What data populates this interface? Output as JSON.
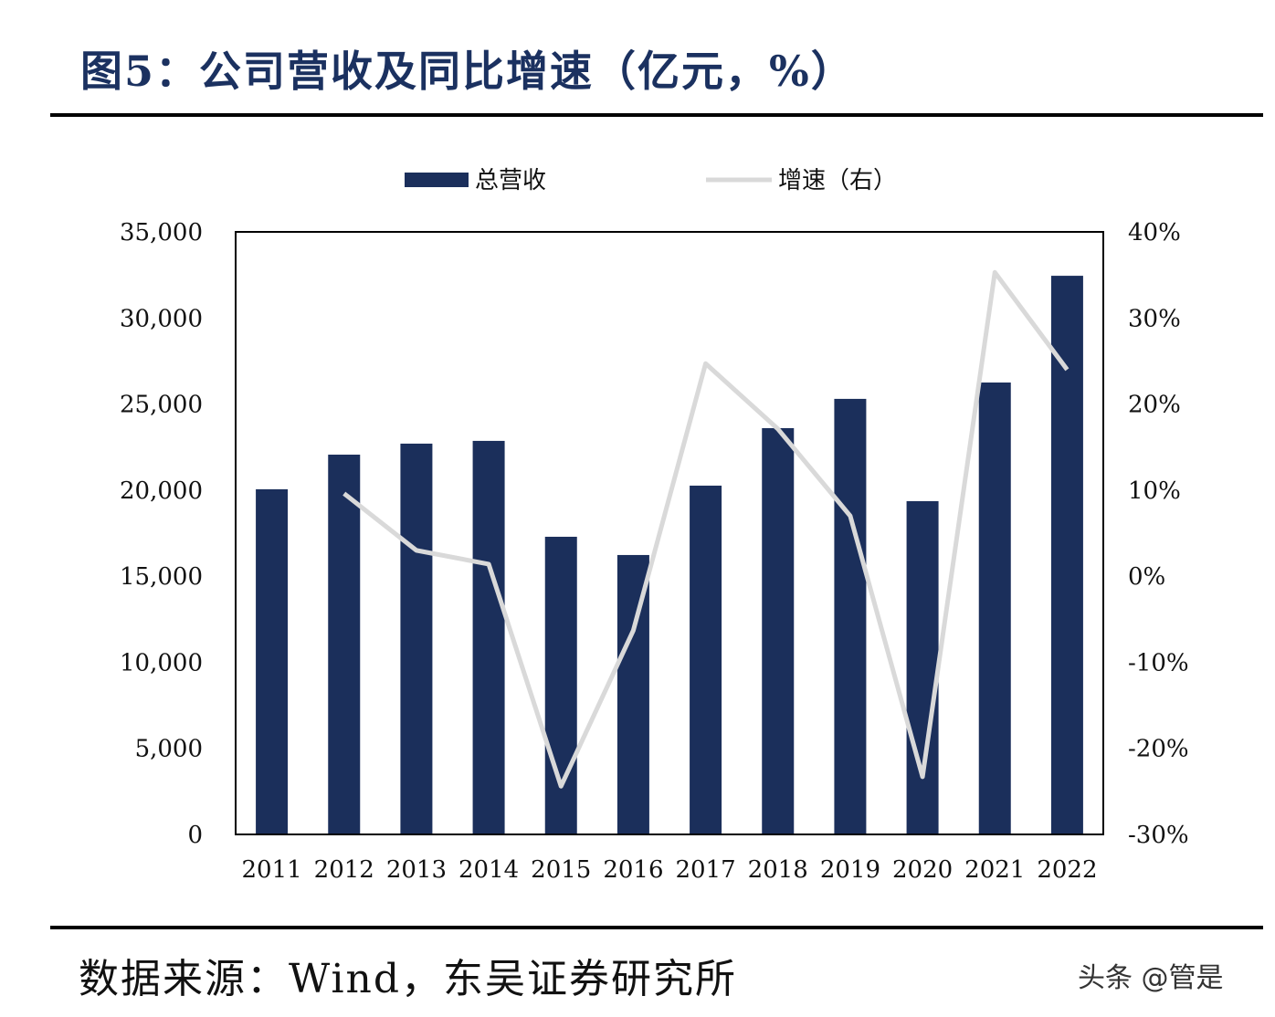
{
  "title": "图5：公司营收及同比增速（亿元，%）",
  "source": "数据来源：Wind，东吴证券研究所",
  "watermark": "头条 @管是",
  "chart_data": {
    "type": "bar+line",
    "title": "",
    "categories": [
      "2011",
      "2012",
      "2013",
      "2014",
      "2015",
      "2016",
      "2017",
      "2018",
      "2019",
      "2020",
      "2021",
      "2022"
    ],
    "series": [
      {
        "name": "总营收",
        "type": "bar",
        "axis": "left",
        "color": "#1b2f5b",
        "values": [
          20050,
          22060,
          22700,
          22860,
          17290,
          16230,
          20260,
          23600,
          25300,
          19360,
          26250,
          32450
        ]
      },
      {
        "name": "增速（右）",
        "type": "line",
        "axis": "right",
        "color": "#d9d9d9",
        "values": [
          null,
          9.6,
          3.0,
          1.4,
          -24.4,
          -6.3,
          24.7,
          17.1,
          7.0,
          -23.3,
          35.3,
          24.0
        ]
      }
    ],
    "left_axis": {
      "ylim": [
        0,
        35000
      ],
      "ticks": [
        "0",
        "5,000",
        "10,000",
        "15,000",
        "20,000",
        "25,000",
        "30,000",
        "35,000"
      ]
    },
    "right_axis": {
      "ylim": [
        -30,
        40
      ],
      "ticks": [
        "-30%",
        "-20%",
        "-10%",
        "0%",
        "10%",
        "20%",
        "30%",
        "40%"
      ]
    },
    "grid": false,
    "legend": "top-center"
  }
}
